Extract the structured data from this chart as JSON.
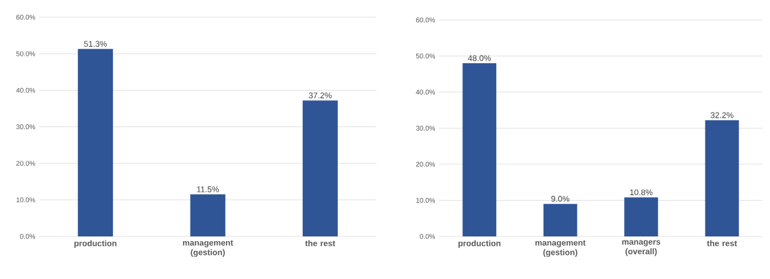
{
  "chart_data": [
    {
      "type": "bar",
      "categories": [
        "production",
        "management (gestion)",
        "the rest"
      ],
      "values": [
        51.3,
        11.5,
        37.2
      ],
      "value_labels": [
        "51.3%",
        "11.5%",
        "37.2%"
      ],
      "color": "#2f5597",
      "ylim": [
        0,
        60
      ],
      "yticks": [
        {
          "value": 0,
          "label": "0.0%"
        },
        {
          "value": 10,
          "label": "10.0%"
        },
        {
          "value": 20,
          "label": "20.0%"
        },
        {
          "value": 30,
          "label": "30.0%"
        },
        {
          "value": 40,
          "label": "40.0%"
        },
        {
          "value": 50,
          "label": "50.0%"
        },
        {
          "value": 60,
          "label": "60.0%"
        }
      ],
      "grid": "y"
    },
    {
      "type": "bar",
      "categories": [
        "production",
        "management (gestion)",
        "managers (overall)",
        "the rest"
      ],
      "values": [
        48.0,
        9.0,
        10.8,
        32.2
      ],
      "value_labels": [
        "48.0%",
        "9.0%",
        "10.8%",
        "32.2%"
      ],
      "color": "#2f5597",
      "ylim": [
        0,
        60
      ],
      "yticks": [
        {
          "value": 0,
          "label": "0.0%"
        },
        {
          "value": 10,
          "label": "10.0%"
        },
        {
          "value": 20,
          "label": "20.0%"
        },
        {
          "value": 30,
          "label": "30.0%"
        },
        {
          "value": 40,
          "label": "40.0%"
        },
        {
          "value": 50,
          "label": "50.0%"
        },
        {
          "value": 60,
          "label": "60.0%"
        }
      ],
      "grid": "y"
    }
  ]
}
